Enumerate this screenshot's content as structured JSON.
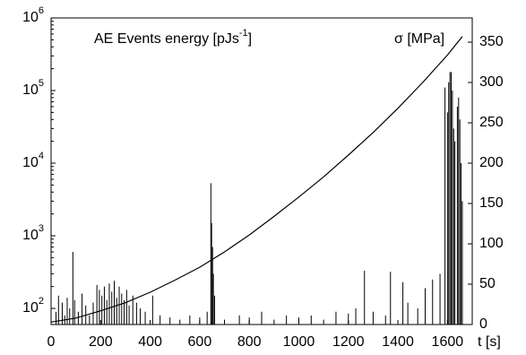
{
  "chart_data": {
    "type": "spike_line",
    "left_label": {
      "text": "AE Events energy [pJs",
      "sup": "-1",
      "end": "]"
    },
    "right_label": "σ [MPa]",
    "x_label": "t [s]",
    "xlim": [
      0,
      1700
    ],
    "xticks": [
      0,
      200,
      400,
      600,
      800,
      1000,
      1200,
      1400,
      1600
    ],
    "ylim": [
      60,
      1000000
    ],
    "log_y": true,
    "yticks": [
      {
        "value": 100,
        "label": "10",
        "exponent": "2"
      },
      {
        "value": 1000,
        "label": "10",
        "exponent": "3"
      },
      {
        "value": 10000,
        "label": "10",
        "exponent": "4"
      },
      {
        "value": 100000,
        "label": "10",
        "exponent": "5"
      },
      {
        "value": 1000000,
        "label": "10",
        "exponent": "6"
      }
    ],
    "y2lim": [
      0,
      380
    ],
    "y2ticks": [
      0,
      50,
      100,
      150,
      200,
      250,
      300,
      350
    ],
    "series": [
      {
        "name": "AE Events energy",
        "color": "#000000",
        "x": [
          20,
          30,
          45,
          55,
          65,
          75,
          88,
          95,
          110,
          125,
          140,
          155,
          170,
          185,
          195,
          205,
          215,
          225,
          235,
          245,
          255,
          265,
          275,
          285,
          295,
          305,
          315,
          330,
          345,
          360,
          380,
          410,
          440,
          480,
          520,
          560,
          600,
          630,
          645,
          648,
          652,
          655,
          660,
          700,
          760,
          800,
          850,
          900,
          950,
          1000,
          1050,
          1100,
          1150,
          1200,
          1230,
          1265,
          1300,
          1350,
          1370,
          1420,
          1440,
          1480,
          1510,
          1540,
          1570,
          1590,
          1600,
          1605,
          1610,
          1615,
          1620,
          1625,
          1630,
          1640,
          1645,
          1650,
          1655,
          1660
        ],
        "values": [
          90,
          150,
          120,
          80,
          140,
          100,
          600,
          130,
          90,
          160,
          110,
          80,
          120,
          210,
          180,
          150,
          200,
          130,
          220,
          170,
          240,
          140,
          200,
          160,
          130,
          180,
          110,
          150,
          120,
          100,
          90,
          150,
          80,
          75,
          70,
          80,
          75,
          90,
          5300,
          1500,
          700,
          300,
          150,
          70,
          80,
          75,
          90,
          70,
          80,
          75,
          80,
          70,
          90,
          85,
          100,
          330,
          90,
          80,
          320,
          230,
          120,
          100,
          190,
          250,
          300,
          110000,
          50000,
          130000,
          180000,
          180000,
          100000,
          30000,
          20000,
          60000,
          80000,
          40000,
          10000,
          3000
        ]
      },
      {
        "name": "σ",
        "color": "#000000",
        "axis": "y2",
        "x": [
          0,
          100,
          200,
          300,
          400,
          500,
          600,
          700,
          800,
          900,
          1000,
          1100,
          1200,
          1300,
          1400,
          1500,
          1600,
          1660
        ],
        "values": [
          3,
          8,
          17,
          27,
          40,
          55,
          71,
          90,
          111,
          134,
          158,
          183,
          210,
          238,
          268,
          300,
          334,
          357
        ]
      }
    ]
  }
}
